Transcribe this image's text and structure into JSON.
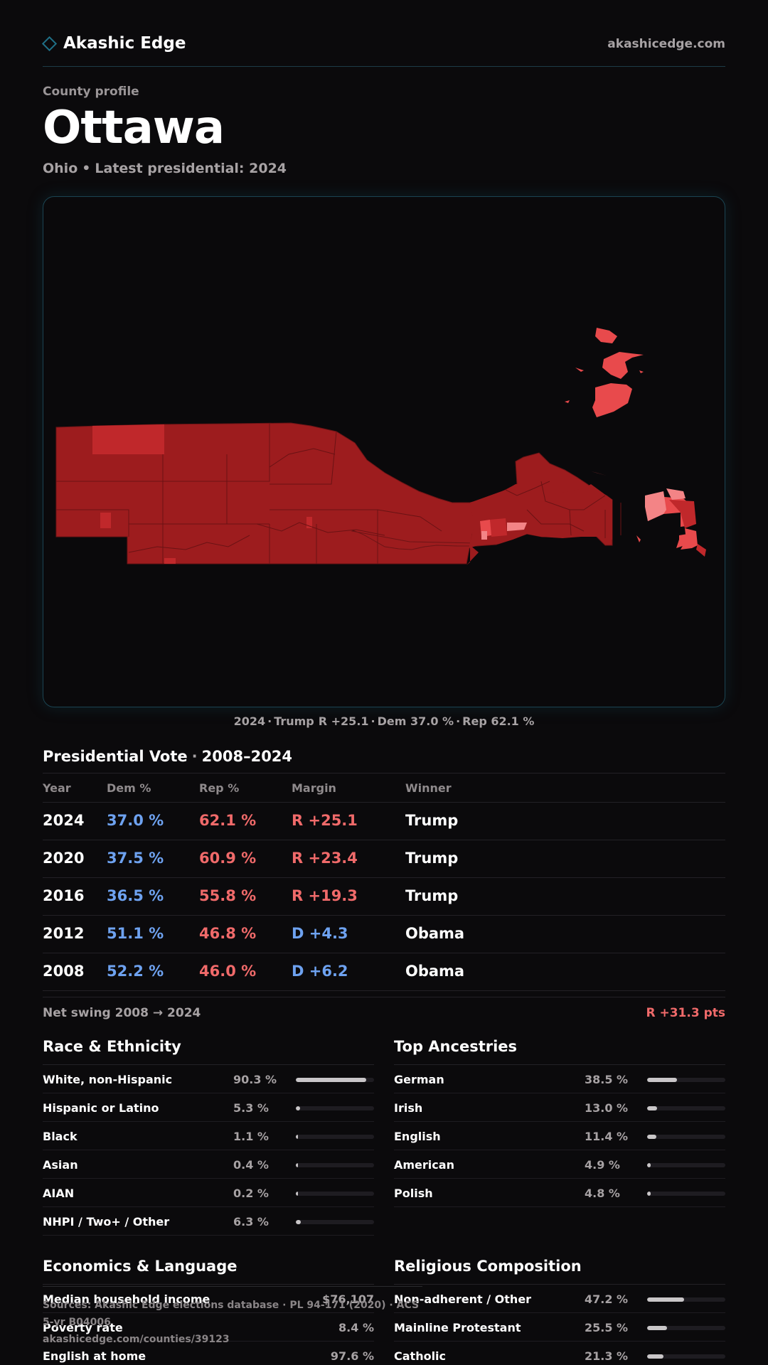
{
  "brand": {
    "name": "Akashic Edge",
    "domain": "akashicedge.com"
  },
  "header": {
    "eyebrow": "County profile",
    "county": "Ottawa",
    "state": "Ohio",
    "latest": "Latest presidential: 2024"
  },
  "map": {
    "caption": {
      "year": "2024",
      "winner": "Trump",
      "margin": "R +25.1",
      "dem": "Dem 37.0 %",
      "rep": "Rep 62.1 %"
    },
    "colors": {
      "strong_rep": "#9d1c1e",
      "mid_rep": "#c0282b",
      "light_rep": "#e84a4c",
      "lean_rep": "#f38486"
    }
  },
  "vote": {
    "title": "Presidential Vote",
    "range": "2008–2024",
    "headers": {
      "year": "Year",
      "dem": "Dem %",
      "rep": "Rep %",
      "margin": "Margin",
      "winner": "Winner"
    },
    "rows": [
      {
        "year": "2024",
        "dem": "37.0 %",
        "rep": "62.1 %",
        "margin": "R +25.1",
        "winner": "Trump",
        "party": "R"
      },
      {
        "year": "2020",
        "dem": "37.5 %",
        "rep": "60.9 %",
        "margin": "R +23.4",
        "winner": "Trump",
        "party": "R"
      },
      {
        "year": "2016",
        "dem": "36.5 %",
        "rep": "55.8 %",
        "margin": "R +19.3",
        "winner": "Trump",
        "party": "R"
      },
      {
        "year": "2012",
        "dem": "51.1 %",
        "rep": "46.8 %",
        "margin": "D +4.3",
        "winner": "Obama",
        "party": "D"
      },
      {
        "year": "2008",
        "dem": "52.2 %",
        "rep": "46.0 %",
        "margin": "D +6.2",
        "winner": "Obama",
        "party": "D"
      }
    ],
    "net_swing_label": "Net swing 2008 → 2024",
    "net_swing_value": "R +31.3 pts",
    "colors": {
      "dem": "#6ea2f0",
      "rep": "#f06a6a"
    }
  },
  "race": {
    "title": "Race & Ethnicity",
    "rows": [
      {
        "label": "White, non-Hispanic",
        "value": "90.3 %",
        "fraction": 0.903
      },
      {
        "label": "Hispanic or Latino",
        "value": "5.3 %",
        "fraction": 0.053
      },
      {
        "label": "Black",
        "value": "1.1 %",
        "fraction": 0.011
      },
      {
        "label": "Asian",
        "value": "0.4 %",
        "fraction": 0.004
      },
      {
        "label": "AIAN",
        "value": "0.2 %",
        "fraction": 0.002
      },
      {
        "label": "NHPI / Two+ / Other",
        "value": "6.3 %",
        "fraction": 0.063
      }
    ]
  },
  "ancestry": {
    "title": "Top Ancestries",
    "rows": [
      {
        "label": "German",
        "value": "38.5 %",
        "fraction": 0.385
      },
      {
        "label": "Irish",
        "value": "13.0 %",
        "fraction": 0.13
      },
      {
        "label": "English",
        "value": "11.4 %",
        "fraction": 0.114
      },
      {
        "label": "American",
        "value": "4.9 %",
        "fraction": 0.049
      },
      {
        "label": "Polish",
        "value": "4.8 %",
        "fraction": 0.048
      }
    ]
  },
  "economics": {
    "title": "Economics & Language",
    "rows": [
      {
        "label": "Median household income",
        "value": "$76,107"
      },
      {
        "label": "Poverty rate",
        "value": "8.4 %"
      },
      {
        "label": "English at home",
        "value": "97.6 %"
      }
    ]
  },
  "religion": {
    "title": "Religious Composition",
    "rows": [
      {
        "label": "Non-adherent / Other",
        "value": "47.2 %",
        "fraction": 0.472
      },
      {
        "label": "Mainline Protestant",
        "value": "25.5 %",
        "fraction": 0.255
      },
      {
        "label": "Catholic",
        "value": "21.3 %",
        "fraction": 0.213
      }
    ]
  },
  "footer": {
    "sources": "Sources: Akashic Edge elections database · PL 94-171 (2020) · ACS 5-yr B04006",
    "url": "akashicedge.com/counties/39123"
  }
}
